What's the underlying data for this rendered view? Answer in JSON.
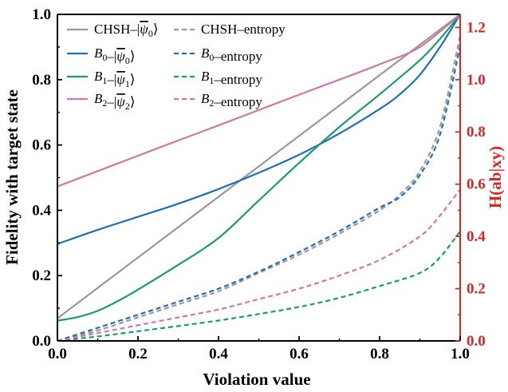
{
  "chart_data": {
    "type": "line",
    "xlabel": "Violation value",
    "ylabel": "Fidelity with target state",
    "y2label": "H(ab|xy)",
    "xlim": [
      0,
      1
    ],
    "ylim": [
      0,
      1
    ],
    "y2lim": [
      0,
      1.25
    ],
    "xticks": [
      "0.0",
      "0.2",
      "0.4",
      "0.6",
      "0.8",
      "1.0"
    ],
    "yticks": [
      "0.0",
      "0.2",
      "0.4",
      "0.6",
      "0.8",
      "1.0"
    ],
    "y2ticks": [
      "0.0",
      "0.2",
      "0.4",
      "0.6",
      "0.8",
      "1.0",
      "1.2"
    ],
    "grid": false,
    "legend_position": "top-left",
    "colors": {
      "axis_left": "#000000",
      "axis_right": "#d62728"
    },
    "series": [
      {
        "id": "chsh-fid",
        "label_plain": "CHSH",
        "label_sub": "",
        "label_target": "ψ",
        "label_target_sub": "0",
        "label_kind": "fidelity",
        "color": "#999999",
        "dashed": false,
        "axis": "left",
        "x": [
          0,
          1
        ],
        "y": [
          0.069,
          1.0
        ]
      },
      {
        "id": "b0-fid",
        "label_plain": "B",
        "label_sub": "0",
        "label_target": "ψ",
        "label_target_sub": "0",
        "label_kind": "fidelity",
        "color": "#1f6fb2",
        "dashed": false,
        "axis": "left",
        "x": [
          0,
          0.1,
          0.2,
          0.3,
          0.4,
          0.5,
          0.6,
          0.7,
          0.8,
          0.85,
          0.9,
          0.95,
          1.0
        ],
        "y": [
          0.297,
          0.34,
          0.38,
          0.42,
          0.465,
          0.515,
          0.57,
          0.635,
          0.71,
          0.755,
          0.815,
          0.9,
          1.0
        ]
      },
      {
        "id": "b1-fid",
        "label_plain": "B",
        "label_sub": "1",
        "label_target": "ψ",
        "label_target_sub": "1",
        "label_kind": "fidelity",
        "color": "#1a9c6e",
        "dashed": false,
        "axis": "left",
        "x": [
          0,
          0.05,
          0.1,
          0.15,
          0.2,
          0.3,
          0.4,
          0.5,
          0.6,
          0.7,
          0.8,
          0.9,
          0.95,
          1.0
        ],
        "y": [
          0.062,
          0.073,
          0.092,
          0.122,
          0.157,
          0.233,
          0.315,
          0.43,
          0.545,
          0.655,
          0.755,
          0.86,
          0.925,
          1.0
        ]
      },
      {
        "id": "b2-fid",
        "label_plain": "B",
        "label_sub": "2",
        "label_target": "ψ",
        "label_target_sub": "2",
        "label_kind": "fidelity",
        "color": "#cc79a7",
        "dashed": false,
        "axis": "left",
        "x": [
          0,
          0.1,
          0.2,
          0.3,
          0.4,
          0.5,
          0.6,
          0.7,
          0.8,
          0.9,
          1.0
        ],
        "y": [
          0.473,
          0.52,
          0.567,
          0.614,
          0.66,
          0.707,
          0.754,
          0.8,
          0.847,
          0.9,
          1.0
        ]
      },
      {
        "id": "chsh-ent",
        "label_plain": "CHSH",
        "label_sub": "",
        "label_kind": "entropy",
        "color": "#999999",
        "dashed": true,
        "axis": "right",
        "x": [
          0,
          0.1,
          0.2,
          0.3,
          0.4,
          0.5,
          0.6,
          0.7,
          0.8,
          0.85,
          0.9,
          0.95,
          1.0
        ],
        "y": [
          0.0,
          0.04,
          0.09,
          0.14,
          0.19,
          0.26,
          0.33,
          0.41,
          0.5,
          0.56,
          0.65,
          0.82,
          1.17
        ]
      },
      {
        "id": "b0-ent",
        "label_plain": "B",
        "label_sub": "0",
        "label_kind": "entropy",
        "color": "#1f6fb2",
        "dashed": true,
        "axis": "right",
        "x": [
          0,
          0.1,
          0.2,
          0.3,
          0.4,
          0.5,
          0.6,
          0.7,
          0.8,
          0.85,
          0.9,
          0.95,
          1.0
        ],
        "y": [
          0.0,
          0.05,
          0.1,
          0.15,
          0.2,
          0.265,
          0.34,
          0.42,
          0.51,
          0.55,
          0.635,
          0.79,
          1.13
        ]
      },
      {
        "id": "b1-ent",
        "label_plain": "B",
        "label_sub": "1",
        "label_kind": "entropy",
        "color": "#1a9c6e",
        "dashed": true,
        "axis": "right",
        "x": [
          0,
          0.1,
          0.2,
          0.3,
          0.4,
          0.5,
          0.6,
          0.7,
          0.8,
          0.9,
          0.95,
          1.0
        ],
        "y": [
          0.0,
          0.017,
          0.037,
          0.057,
          0.078,
          0.103,
          0.13,
          0.165,
          0.21,
          0.26,
          0.32,
          0.42
        ]
      },
      {
        "id": "b2-ent",
        "label_plain": "B",
        "label_sub": "2",
        "label_kind": "entropy",
        "color": "#cc79a7",
        "dashed": true,
        "axis": "right",
        "x": [
          0,
          0.1,
          0.2,
          0.3,
          0.4,
          0.5,
          0.6,
          0.7,
          0.8,
          0.9,
          0.95,
          1.0
        ],
        "y": [
          0.0,
          0.03,
          0.06,
          0.09,
          0.12,
          0.16,
          0.2,
          0.25,
          0.31,
          0.4,
          0.48,
          0.58
        ]
      }
    ],
    "legend_entropy_suffix": "entropy"
  }
}
